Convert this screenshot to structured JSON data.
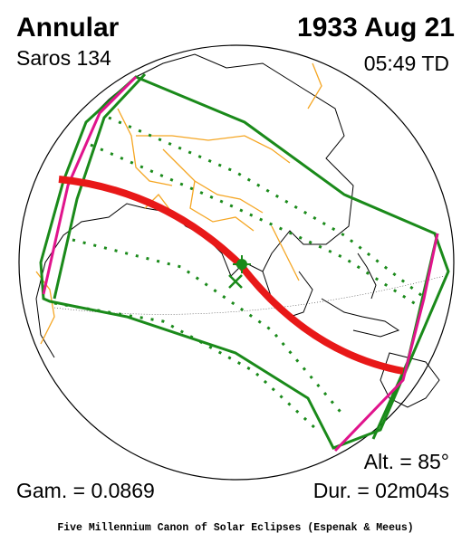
{
  "header": {
    "eclipse_type": "Annular",
    "saros": "Saros 134",
    "date": "1933 Aug 21",
    "time": "05:49 TD"
  },
  "stats": {
    "altitude": "Alt. = 85°",
    "gamma": "Gam. = 0.0869",
    "duration": "Dur. = 02m04s"
  },
  "footer": {
    "credit": "Five Millennium Canon of Solar Eclipses (Espenak & Meeus)"
  }
}
